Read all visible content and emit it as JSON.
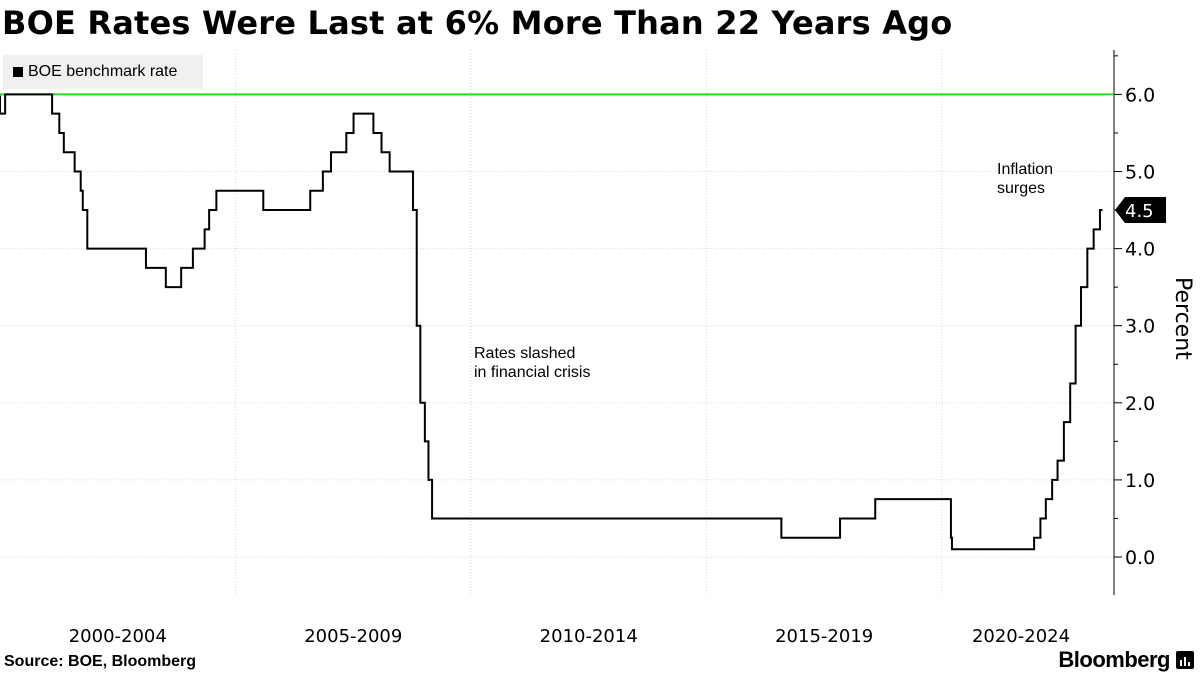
{
  "chart_data": {
    "type": "line",
    "title": "BOE Rates Were Last at 6% More Than 22 Years Ago",
    "ylabel": "Percent",
    "ylim": [
      -0.5,
      6.5
    ],
    "y_ticks": [
      "0.0",
      "1.0",
      "2.0",
      "3.0",
      "4.0",
      "5.0",
      "6.0"
    ],
    "x_period_labels": [
      "2000-2004",
      "2005-2009",
      "2010-2014",
      "2015-2019",
      "2020-2024"
    ],
    "grid": true,
    "legend_position": "top-left",
    "series": [
      {
        "name": "BOE benchmark rate",
        "color": "#000000",
        "step": true,
        "x": [
          "2000-01-01",
          "2000-02-10",
          "2001-02-08",
          "2001-04-05",
          "2001-05-10",
          "2001-08-02",
          "2001-09-18",
          "2001-10-04",
          "2001-11-08",
          "2003-02-06",
          "2003-07-10",
          "2003-11-06",
          "2004-02-05",
          "2004-05-06",
          "2004-06-10",
          "2004-08-05",
          "2005-08-04",
          "2006-08-03",
          "2006-11-09",
          "2007-01-11",
          "2007-05-10",
          "2007-07-05",
          "2007-12-06",
          "2008-02-07",
          "2008-04-10",
          "2008-10-08",
          "2008-11-06",
          "2008-12-04",
          "2009-01-08",
          "2009-02-05",
          "2009-03-05",
          "2016-08-04",
          "2017-11-02",
          "2018-08-02",
          "2020-03-11",
          "2020-03-19",
          "2021-12-16",
          "2022-02-03",
          "2022-03-17",
          "2022-05-05",
          "2022-06-16",
          "2022-08-04",
          "2022-09-22",
          "2022-11-03",
          "2022-12-15",
          "2023-02-02",
          "2023-03-23",
          "2023-05-11",
          "2023-05-31"
        ],
        "values": [
          5.75,
          6.0,
          5.75,
          5.5,
          5.25,
          5.0,
          4.75,
          4.5,
          4.0,
          3.75,
          3.5,
          3.75,
          4.0,
          4.25,
          4.5,
          4.75,
          4.5,
          4.75,
          5.0,
          5.25,
          5.5,
          5.75,
          5.5,
          5.25,
          5.0,
          4.5,
          3.0,
          2.0,
          1.5,
          1.0,
          0.5,
          0.25,
          0.5,
          0.75,
          0.25,
          0.1,
          0.25,
          0.5,
          0.75,
          1.0,
          1.25,
          1.75,
          2.25,
          3.0,
          3.5,
          4.0,
          4.25,
          4.5,
          4.5
        ]
      }
    ],
    "reference_line": {
      "value": 6.0,
      "color": "#22dd22"
    },
    "last_value_label": "4.5",
    "annotations": [
      {
        "lines": [
          "Rates slashed",
          "in financial crisis"
        ]
      },
      {
        "lines": [
          "Inflation",
          "surges"
        ]
      }
    ]
  },
  "footer": {
    "source": "Source: BOE, Bloomberg",
    "brand": "Bloomberg"
  }
}
